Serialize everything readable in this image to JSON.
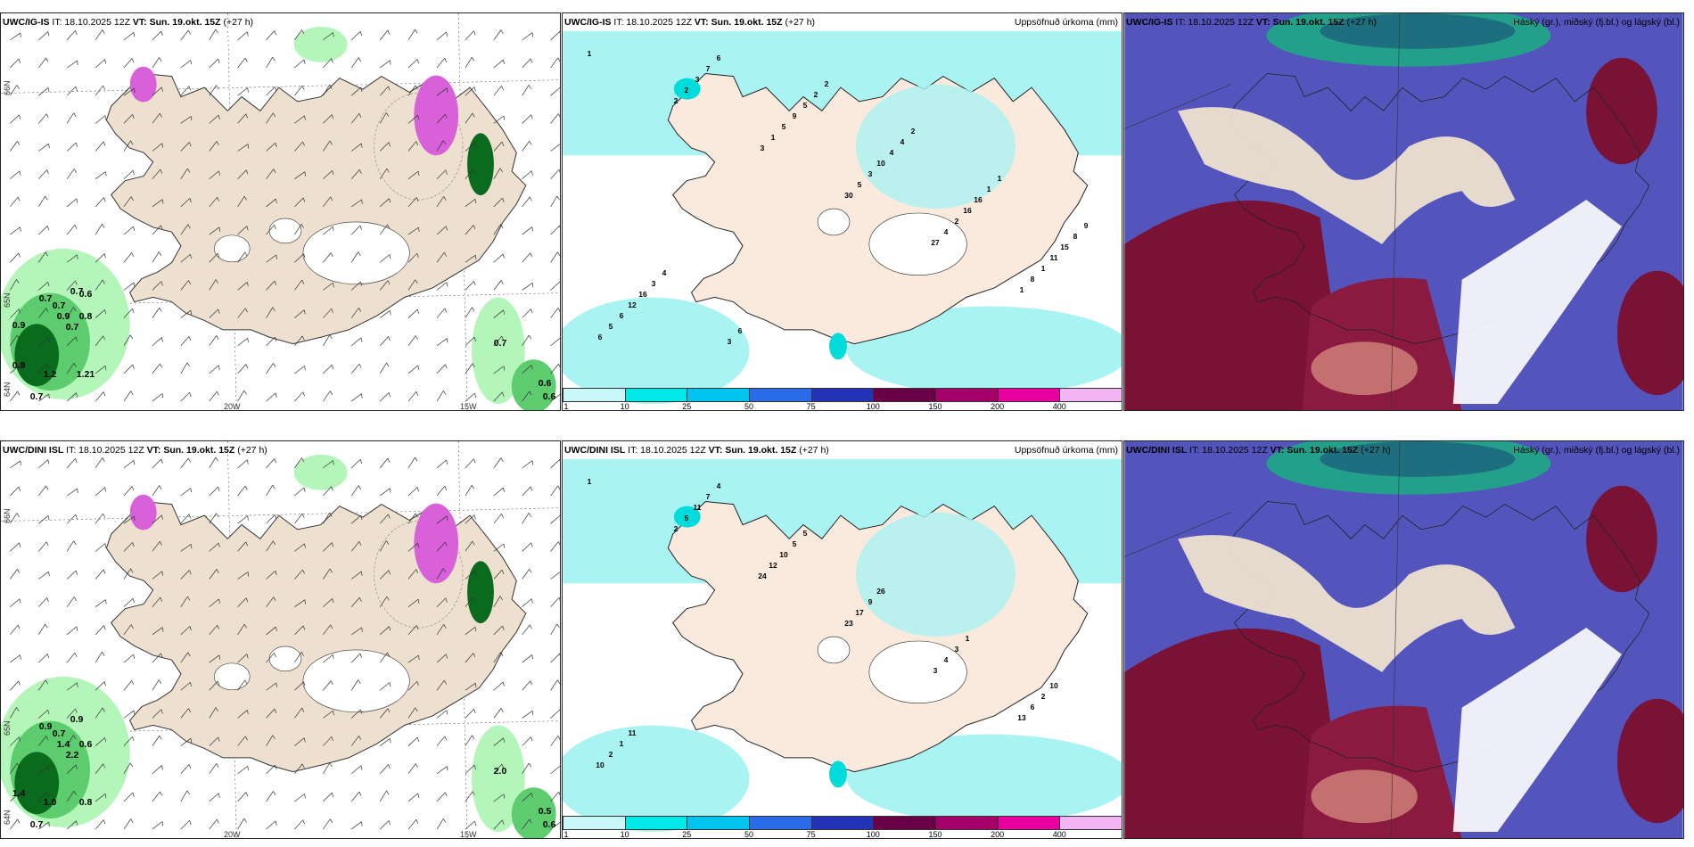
{
  "panels": [
    {
      "model": "UWC/IG-IS",
      "it": "IT: 18.10.2025 12Z",
      "vt_label": "VT:",
      "vt": "Sun. 19.okt. 15Z",
      "lead": "(+27 h)",
      "right_title": "",
      "axis": {
        "lon1": "20W",
        "lon2": "15W",
        "lat1": "66N",
        "lat2": "65N",
        "lat3": "64N"
      },
      "values": [
        "0.7",
        "0.7",
        "0.9",
        "0.7",
        "0.9",
        "0.7",
        "1.2",
        "0.8",
        "1.21",
        "0.7",
        "0.6",
        "0.6",
        "0.7",
        "0.6",
        "0.9"
      ]
    },
    {
      "model": "UWC/IG-IS",
      "it": "IT: 18.10.2025 12Z",
      "vt_label": "VT:",
      "vt": "Sun. 19.okt. 15Z",
      "lead": "(+27 h)",
      "right_title": "Uppsöfnuð úrkoma (mm)",
      "values": [
        "1",
        "2",
        "3",
        "30",
        "27",
        "1",
        "6",
        "2",
        "1",
        "5",
        "4",
        "8",
        "5",
        "3",
        "5",
        "3",
        "2",
        "1",
        "6",
        "7",
        "9",
        "10",
        "16",
        "11",
        "12",
        "6",
        "5",
        "4",
        "16",
        "15",
        "16",
        "3",
        "2",
        "4",
        "1",
        "8",
        "3",
        "6",
        "2",
        "2",
        "1",
        "9",
        "4"
      ]
    },
    {
      "model": "UWC/IG-IS",
      "it": "IT: 18.10.2025 12Z",
      "vt_label": "VT:",
      "vt": "Sun. 19.okt. 15Z",
      "lead": "(+27 h)",
      "right_title": "Háský (gr.), miðský (fj.bl.) og lágský (bl.)"
    },
    {
      "model": "UWC/DINI ISL",
      "it": "IT: 18.10.2025 12Z",
      "vt_label": "VT:",
      "vt": "Sun. 19.okt. 15Z",
      "lead": "(+27 h)",
      "right_title": "",
      "axis": {
        "lon1": "20W",
        "lon2": "15W",
        "lat1": "66N",
        "lat2": "65N",
        "lat3": "64N"
      },
      "values": [
        "0.9",
        "0.7",
        "1.4",
        "0.9",
        "1.4",
        "2.2",
        "1.0",
        "0.6",
        "0.8",
        "0.7",
        "0.5",
        "0.6",
        "2.0"
      ]
    },
    {
      "model": "UWC/DINI ISL",
      "it": "IT: 18.10.2025 12Z",
      "vt_label": "VT:",
      "vt": "Sun. 19.okt. 15Z",
      "lead": "(+27 h)",
      "right_title": "Uppsöfnuð úrkoma (mm)",
      "values": [
        "1",
        "2",
        "24",
        "23",
        "3",
        "13",
        "10",
        "5",
        "12",
        "17",
        "4",
        "6",
        "2",
        "11",
        "10",
        "9",
        "3",
        "2",
        "1",
        "7",
        "5",
        "26",
        "1",
        "10",
        "11",
        "4",
        "5"
      ]
    },
    {
      "model": "UWC/DINI ISL",
      "it": "IT: 18.10.2025 12Z",
      "vt_label": "VT:",
      "vt": "Sun. 19.okt. 15Z",
      "lead": "(+27 h)",
      "right_title": "Háský (gr.), miðský (fj.bl.) og lágský (bl.)"
    }
  ],
  "colorbar": {
    "ticks": [
      "1",
      "10",
      "25",
      "50",
      "75",
      "100",
      "150",
      "200",
      "400"
    ],
    "colors": [
      "#c9f7f7",
      "#00e8e8",
      "#00c4ee",
      "#2a6be8",
      "#2233b8",
      "#6a0046",
      "#a5006a",
      "#e800a0",
      "#f3b4f3"
    ]
  },
  "colors": {
    "land": "#eee0cf",
    "precip_light": "#b4f5b9",
    "precip_mid": "#5ccc6e",
    "precip_heavy": "#0a6b1e",
    "snow": "#d860d8",
    "accum_light": "#aaf3f3",
    "cloud_mid": "#5454bd",
    "cloud_low": "#7a1236",
    "cloud_high": "#22a08a"
  }
}
